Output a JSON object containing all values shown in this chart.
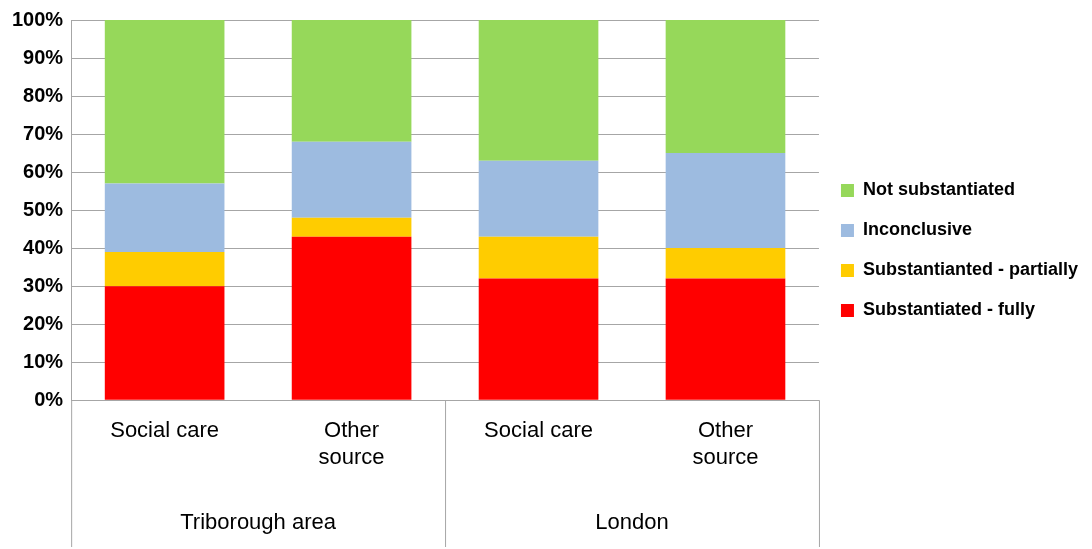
{
  "chart_data": {
    "type": "bar",
    "stacked": true,
    "categories": [
      "Social care",
      "Other source",
      "Social care",
      "Other source"
    ],
    "series": [
      {
        "name": "Substantiated - fully",
        "color": "#ff0000",
        "values": [
          30,
          43,
          32,
          32
        ]
      },
      {
        "name": "Substantianted - partially",
        "color": "#ffcc00",
        "values": [
          9,
          5,
          11,
          8
        ]
      },
      {
        "name": "Inconclusive",
        "color": "#9dbbe0",
        "values": [
          18,
          20,
          20,
          25
        ]
      },
      {
        "name": "Not substantiated",
        "color": "#96d85a",
        "values": [
          43,
          32,
          37,
          35
        ]
      }
    ],
    "ylim": [
      0,
      100
    ],
    "yticks": [
      {
        "value": 0,
        "label": "0%"
      },
      {
        "value": 10,
        "label": "10%"
      },
      {
        "value": 20,
        "label": "20%"
      },
      {
        "value": 30,
        "label": "30%"
      },
      {
        "value": 40,
        "label": "40%"
      },
      {
        "value": 50,
        "label": "50%"
      },
      {
        "value": 60,
        "label": "60%"
      },
      {
        "value": 70,
        "label": "70%"
      },
      {
        "value": 80,
        "label": "80%"
      },
      {
        "value": 90,
        "label": "90%"
      },
      {
        "value": 100,
        "label": "100%"
      }
    ],
    "annotations": [
      "Triborough area",
      "London"
    ],
    "grid": "y",
    "legend": "right"
  }
}
